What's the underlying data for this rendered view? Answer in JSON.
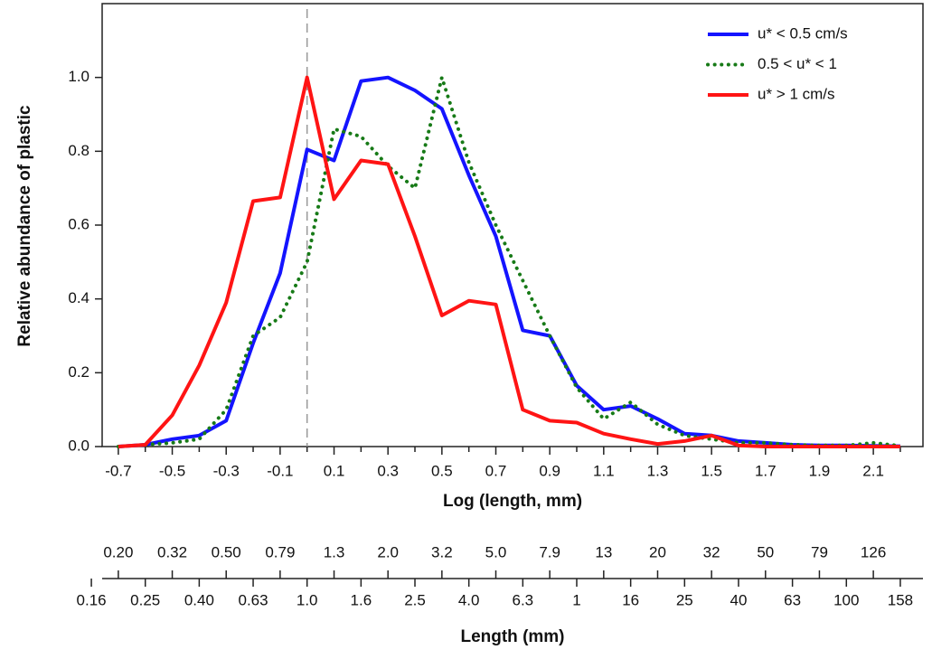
{
  "chart_data": {
    "type": "line",
    "ylabel": "Relative abundance of plastic",
    "xlabel": "Log (length, mm)",
    "x2label": "Length (mm)",
    "x": [
      -0.7,
      -0.6,
      -0.5,
      -0.4,
      -0.3,
      -0.2,
      -0.1,
      0,
      0.1,
      0.2,
      0.3,
      0.4,
      0.5,
      0.6,
      0.7,
      0.8,
      0.9,
      1,
      1.1,
      1.2,
      1.3,
      1.4,
      1.5,
      1.6,
      1.7,
      1.8,
      1.9,
      2,
      2.1,
      2.2
    ],
    "series": [
      {
        "name": "u* < 0.5 cm/s",
        "color": "#1414ff",
        "style": "solid",
        "values": [
          0,
          0.005,
          0.02,
          0.03,
          0.07,
          0.28,
          0.47,
          0.805,
          0.775,
          0.99,
          1.0,
          0.965,
          0.915,
          0.735,
          0.57,
          0.315,
          0.3,
          0.165,
          0.1,
          0.11,
          0.075,
          0.035,
          0.03,
          0.015,
          0.01,
          0.005,
          0.003,
          0.003,
          0.002,
          0.001
        ]
      },
      {
        "name": "0.5 < u* < 1",
        "color": "#177a17",
        "style": "dotted",
        "values": [
          0,
          0.005,
          0.01,
          0.02,
          0.1,
          0.3,
          0.35,
          0.5,
          0.86,
          0.84,
          0.76,
          0.7,
          1.0,
          0.77,
          0.6,
          0.45,
          0.3,
          0.16,
          0.075,
          0.12,
          0.06,
          0.03,
          0.02,
          0.01,
          0.01,
          0.005,
          0.003,
          0.003,
          0.01,
          0.002
        ]
      },
      {
        "name": "u* > 1 cm/s",
        "color": "#ff1414",
        "style": "solid",
        "values": [
          0,
          0.005,
          0.085,
          0.22,
          0.39,
          0.665,
          0.675,
          1.0,
          0.67,
          0.775,
          0.765,
          0.57,
          0.355,
          0.395,
          0.385,
          0.1,
          0.07,
          0.065,
          0.035,
          0.02,
          0.007,
          0.015,
          0.03,
          0.003,
          0,
          0,
          0,
          0,
          0,
          0
        ]
      }
    ],
    "xlim": [
      -0.76,
      2.284
    ],
    "ylim": [
      0,
      1.2
    ],
    "xticks": [
      -0.7,
      -0.5,
      -0.3,
      -0.1,
      0.1,
      0.3,
      0.5,
      0.7,
      0.9,
      1.1,
      1.3,
      1.5,
      1.7,
      1.9,
      2.1
    ],
    "xticks_minor": [
      -0.6,
      -0.4,
      -0.2,
      0,
      0.2,
      0.4,
      0.6,
      0.8,
      1,
      1.2,
      1.4,
      1.6,
      1.8,
      2,
      2.2
    ],
    "yticks": [
      {
        "value": 0,
        "label": "0.0"
      },
      0.2,
      0.4,
      0.6,
      0.8,
      {
        "value": 1,
        "label": "1.0"
      }
    ],
    "x2ticks": [
      {
        "value": -0.8,
        "label": "0.16"
      },
      {
        "value": -0.7,
        "label": "0.20"
      },
      {
        "value": -0.6,
        "label": "0.25"
      },
      {
        "value": -0.5,
        "label": "0.32"
      },
      {
        "value": -0.4,
        "label": "0.40"
      },
      {
        "value": -0.3,
        "label": "0.50"
      },
      {
        "value": -0.2,
        "label": "0.63"
      },
      {
        "value": -0.1,
        "label": "0.79"
      },
      {
        "value": 0,
        "label": "1.0"
      },
      {
        "value": 0.1,
        "label": "1.3"
      },
      {
        "value": 0.2,
        "label": "1.6"
      },
      {
        "value": 0.3,
        "label": "2.0"
      },
      {
        "value": 0.4,
        "label": "2.5"
      },
      {
        "value": 0.5,
        "label": "3.2"
      },
      {
        "value": 0.6,
        "label": "4.0"
      },
      {
        "value": 0.7,
        "label": "5.0"
      },
      {
        "value": 0.8,
        "label": "6.3"
      },
      {
        "value": 0.9,
        "label": "7.9"
      },
      1,
      {
        "value": 1.1,
        "label": "13"
      },
      {
        "value": 1.2,
        "label": "16"
      },
      {
        "value": 1.3,
        "label": "20"
      },
      {
        "value": 1.4,
        "label": "25"
      },
      {
        "value": 1.5,
        "label": "32"
      },
      {
        "value": 1.6,
        "label": "40"
      },
      {
        "value": 1.7,
        "label": "50"
      },
      {
        "value": 1.8,
        "label": "63"
      },
      {
        "value": 1.9,
        "label": "79"
      },
      {
        "value": 2,
        "label": "100"
      },
      {
        "value": 2.1,
        "label": "126"
      },
      {
        "value": 2.2,
        "label": "158"
      }
    ],
    "vline": 0,
    "legend": "upper right"
  }
}
